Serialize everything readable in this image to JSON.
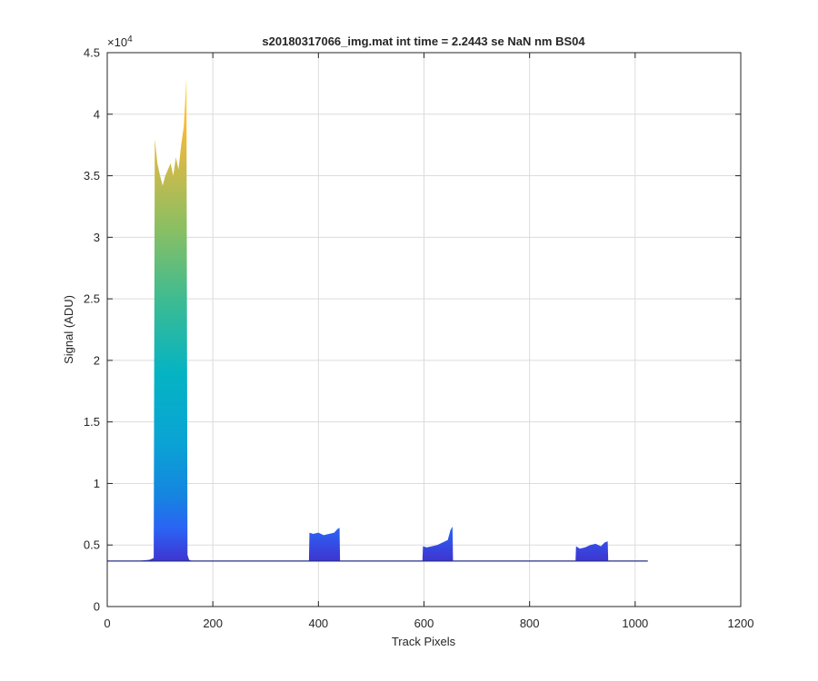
{
  "chart_data": {
    "type": "area",
    "title": "s20180317066_img.mat int time = 2.2443 se  NaN nm BS04",
    "xlabel": "Track Pixels",
    "ylabel": "Signal (ADU)",
    "xlim": [
      0,
      1200
    ],
    "ylim": [
      0,
      45000
    ],
    "x_ticks": [
      0,
      200,
      400,
      600,
      800,
      1000,
      1200
    ],
    "x_tick_labels": [
      "0",
      "200",
      "400",
      "600",
      "800",
      "1000",
      "1200"
    ],
    "y_ticks": [
      0,
      5000,
      10000,
      15000,
      20000,
      25000,
      30000,
      35000,
      40000,
      45000
    ],
    "y_tick_labels": [
      "0",
      "0.5",
      "1",
      "1.5",
      "2",
      "2.5",
      "3",
      "3.5",
      "4",
      "4.5"
    ],
    "y_exponent_label": "×10",
    "y_exponent_power": "4",
    "grid": true,
    "colormap": "parula",
    "baseline_color": "#2b2f8c",
    "baseline_level": 3700,
    "x_max": 1024,
    "series": [
      {
        "x": [
          0,
          60,
          80,
          88,
          90,
          95,
          100,
          105,
          110,
          115,
          120,
          125,
          130,
          135,
          140,
          145,
          150,
          152,
          155,
          160,
          200,
          300,
          380,
          1024
        ],
        "y": [
          3700,
          3720,
          3800,
          3950,
          38000,
          36000,
          35000,
          34200,
          35000,
          35500,
          36000,
          35000,
          36500,
          35500,
          37500,
          39000,
          43000,
          4200,
          3800,
          3720,
          3700,
          3660,
          3650,
          3700
        ]
      },
      {
        "x": [
          382,
          383,
          390,
          400,
          410,
          420,
          430,
          436,
          440,
          441
        ],
        "y": [
          3650,
          6000,
          5900,
          6000,
          5800,
          5900,
          6000,
          6300,
          6400,
          3650
        ]
      },
      {
        "x": [
          597,
          598,
          605,
          615,
          625,
          635,
          645,
          650,
          654,
          655
        ],
        "y": [
          3650,
          4900,
          4800,
          4900,
          5000,
          5200,
          5400,
          6200,
          6500,
          3650
        ]
      },
      {
        "x": [
          887,
          888,
          895,
          905,
          915,
          925,
          935,
          942,
          948,
          949
        ],
        "y": [
          3650,
          4900,
          4700,
          4800,
          5000,
          5100,
          4900,
          5200,
          5300,
          3650
        ]
      }
    ]
  }
}
